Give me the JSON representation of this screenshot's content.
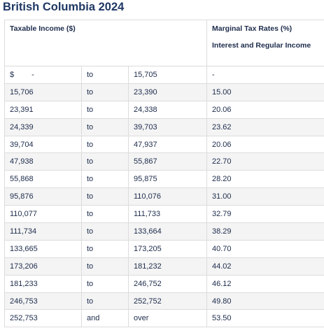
{
  "title": "British Columbia 2024",
  "table": {
    "header": {
      "income": "Taxable Income ($)",
      "rates": "Marginal Tax Rates (%)",
      "rates_sub": "Interest and Regular Income"
    },
    "rows": [
      [
        "$ -",
        "to",
        "15,705",
        "-"
      ],
      [
        "15,706",
        "to",
        "23,390",
        "15.00"
      ],
      [
        "23,391",
        "to",
        "24,338",
        "20.06"
      ],
      [
        "24,339",
        "to",
        "39,703",
        "23.62"
      ],
      [
        "39,704",
        "to",
        "47,937",
        "20.06"
      ],
      [
        "47,938",
        "to",
        "55,867",
        "22.70"
      ],
      [
        "55,868",
        "to",
        "95,875",
        "28.20"
      ],
      [
        "95,876",
        "to",
        "110,076",
        "31.00"
      ],
      [
        "110,077",
        "to",
        "111,733",
        "32.79"
      ],
      [
        "111,734",
        "to",
        "133,664",
        "38.29"
      ],
      [
        "133,665",
        "to",
        "173,205",
        "40.70"
      ],
      [
        "173,206",
        "to",
        "181,232",
        "44.02"
      ],
      [
        "181,233",
        "to",
        "246,752",
        "46.12"
      ],
      [
        "246,753",
        "to",
        "252,752",
        "49.80"
      ],
      [
        "252,753",
        "and",
        "over",
        "53.50"
      ]
    ]
  }
}
